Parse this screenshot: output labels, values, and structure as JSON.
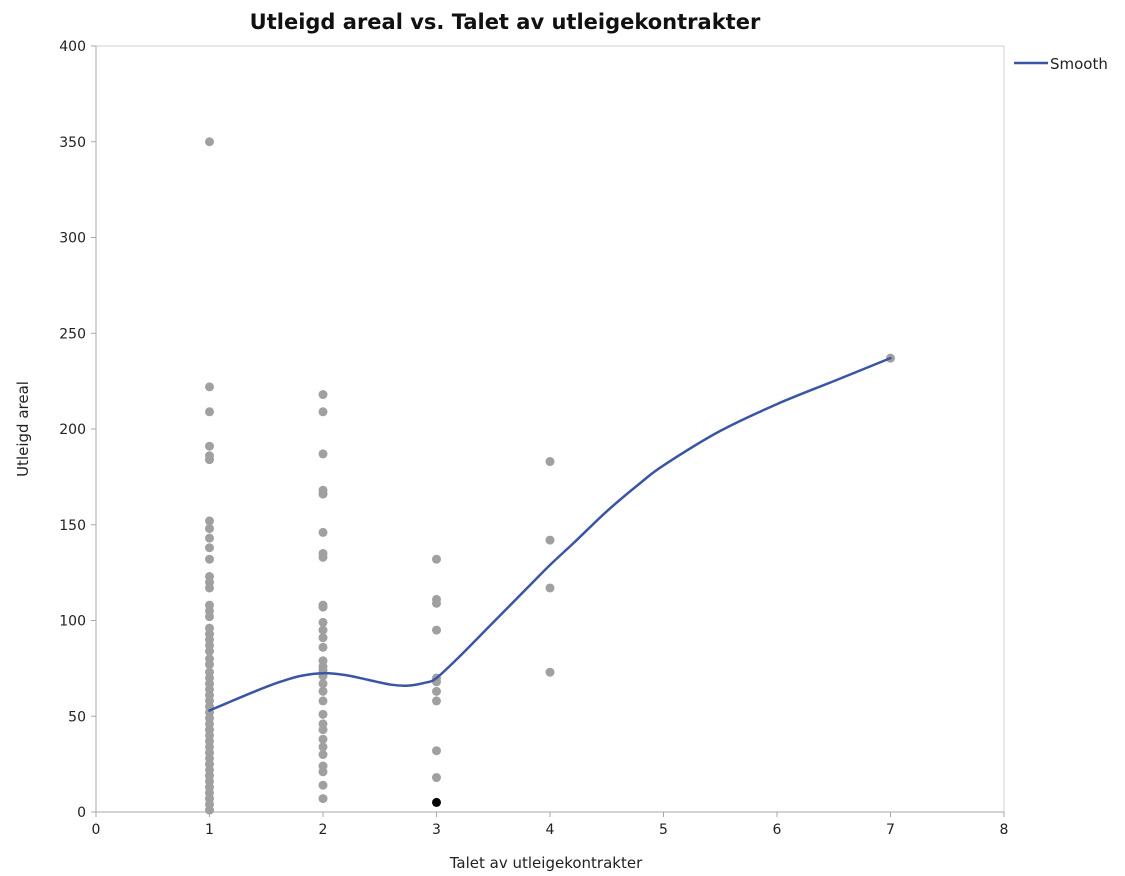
{
  "chart_data": {
    "type": "scatter",
    "title": "Utleigd areal vs. Talet av utleigekontrakter",
    "xlabel": "Talet av utleigekontrakter",
    "ylabel": "Utleigd areal",
    "xlim": [
      0,
      8
    ],
    "ylim": [
      0,
      400
    ],
    "xticks": [
      0,
      1,
      2,
      3,
      4,
      5,
      6,
      7,
      8
    ],
    "yticks": [
      0,
      50,
      100,
      150,
      200,
      250,
      300,
      350,
      400
    ],
    "grid": false,
    "legend": {
      "position": "top-right",
      "entries": [
        "Smooth"
      ]
    },
    "colors": {
      "points": "#a0a0a0",
      "highlight": "#000000",
      "smooth": "#3a55a4"
    },
    "series": [
      {
        "type": "scatter",
        "points": [
          [
            1,
            350
          ],
          [
            1,
            222
          ],
          [
            1,
            209
          ],
          [
            1,
            191
          ],
          [
            1,
            186
          ],
          [
            1,
            184
          ],
          [
            1,
            152
          ],
          [
            1,
            148
          ],
          [
            1,
            143
          ],
          [
            1,
            138
          ],
          [
            1,
            132
          ],
          [
            1,
            123
          ],
          [
            1,
            120
          ],
          [
            1,
            117
          ],
          [
            1,
            108
          ],
          [
            1,
            105
          ],
          [
            1,
            102
          ],
          [
            1,
            96
          ],
          [
            1,
            93
          ],
          [
            1,
            90
          ],
          [
            1,
            87
          ],
          [
            1,
            84
          ],
          [
            1,
            80
          ],
          [
            1,
            77
          ],
          [
            1,
            73
          ],
          [
            1,
            70
          ],
          [
            1,
            67
          ],
          [
            1,
            64
          ],
          [
            1,
            61
          ],
          [
            1,
            58
          ],
          [
            1,
            55
          ],
          [
            1,
            52
          ],
          [
            1,
            49
          ],
          [
            1,
            46
          ],
          [
            1,
            43
          ],
          [
            1,
            40
          ],
          [
            1,
            37
          ],
          [
            1,
            34
          ],
          [
            1,
            31
          ],
          [
            1,
            28
          ],
          [
            1,
            25
          ],
          [
            1,
            22
          ],
          [
            1,
            19
          ],
          [
            1,
            16
          ],
          [
            1,
            13
          ],
          [
            1,
            10
          ],
          [
            1,
            7
          ],
          [
            1,
            4
          ],
          [
            1,
            1
          ],
          [
            2,
            218
          ],
          [
            2,
            209
          ],
          [
            2,
            187
          ],
          [
            2,
            168
          ],
          [
            2,
            166
          ],
          [
            2,
            146
          ],
          [
            2,
            135
          ],
          [
            2,
            133
          ],
          [
            2,
            108
          ],
          [
            2,
            107
          ],
          [
            2,
            99
          ],
          [
            2,
            95
          ],
          [
            2,
            91
          ],
          [
            2,
            86
          ],
          [
            2,
            79
          ],
          [
            2,
            76
          ],
          [
            2,
            74
          ],
          [
            2,
            71
          ],
          [
            2,
            67
          ],
          [
            2,
            63
          ],
          [
            2,
            58
          ],
          [
            2,
            51
          ],
          [
            2,
            46
          ],
          [
            2,
            43
          ],
          [
            2,
            38
          ],
          [
            2,
            34
          ],
          [
            2,
            30
          ],
          [
            2,
            24
          ],
          [
            2,
            21
          ],
          [
            2,
            14
          ],
          [
            2,
            7
          ],
          [
            3,
            132
          ],
          [
            3,
            111
          ],
          [
            3,
            109
          ],
          [
            3,
            95
          ],
          [
            3,
            70
          ],
          [
            3,
            68
          ],
          [
            3,
            63
          ],
          [
            3,
            58
          ],
          [
            3,
            32
          ],
          [
            3,
            18
          ],
          [
            4,
            183
          ],
          [
            4,
            142
          ],
          [
            4,
            117
          ],
          [
            4,
            73
          ],
          [
            7,
            237
          ]
        ],
        "highlighted": [
          [
            3,
            5
          ]
        ]
      },
      {
        "name": "Smooth",
        "type": "line",
        "points": [
          [
            1.0,
            53
          ],
          [
            1.2,
            58
          ],
          [
            1.4,
            63
          ],
          [
            1.6,
            67.5
          ],
          [
            1.8,
            71
          ],
          [
            2.0,
            72.5
          ],
          [
            2.2,
            71.5
          ],
          [
            2.4,
            69
          ],
          [
            2.6,
            66.5
          ],
          [
            2.75,
            66
          ],
          [
            2.9,
            67.5
          ],
          [
            3.0,
            70
          ],
          [
            3.2,
            81
          ],
          [
            3.4,
            93
          ],
          [
            3.6,
            105
          ],
          [
            3.8,
            117
          ],
          [
            4.0,
            129
          ],
          [
            4.2,
            140
          ],
          [
            4.5,
            157
          ],
          [
            4.8,
            172
          ],
          [
            5.0,
            181
          ],
          [
            5.5,
            199
          ],
          [
            6.0,
            213
          ],
          [
            6.5,
            225
          ],
          [
            7.0,
            237
          ]
        ]
      }
    ]
  }
}
